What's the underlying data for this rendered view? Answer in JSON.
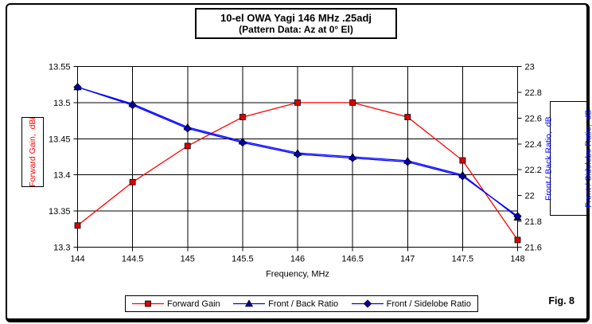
{
  "figure": {
    "fig_label": "Fig. 8"
  },
  "chart_data": {
    "type": "line",
    "title": "10-el OWA Yagi 146 MHz .25adj",
    "subtitle": "(Pattern Data: Az at 0° El)",
    "xlabel": "Frequency, MHz",
    "x_range": [
      144,
      148
    ],
    "x": [
      144,
      144.5,
      145,
      145.5,
      146,
      146.5,
      147,
      147.5,
      148
    ],
    "x_tick_labels": [
      "144",
      "144.5",
      "145",
      "145.5",
      "146",
      "146.5",
      "147",
      "147.5",
      "148"
    ],
    "grid": true,
    "legend_position": "bottom",
    "left_axis": {
      "label": "Forward Gain,  dBi",
      "min": 13.3,
      "max": 13.55,
      "tick_step": 0.05,
      "tick_labels": [
        "13.55",
        "13.5",
        "13.45",
        "13.4",
        "13.35",
        "13.3"
      ],
      "color": "#ff0000"
    },
    "right_axis": {
      "label_line1": "Front / Back Ratio,  dB",
      "label_line2": "Front / Sidelobe Ratio,  dB",
      "min": 21.6,
      "max": 23,
      "tick_step": 0.2,
      "tick_labels": [
        "23",
        "22.8",
        "22.6",
        "22.4",
        "22.2",
        "22",
        "21.8",
        "21.6"
      ],
      "color": "#0000ff"
    },
    "series": [
      {
        "name": "Forward Gain",
        "axis": "left",
        "marker": "square",
        "color": "#ff0000",
        "marker_color": "#dd0000",
        "values": [
          13.33,
          13.39,
          13.44,
          13.48,
          13.5,
          13.5,
          13.48,
          13.42,
          13.31
        ]
      },
      {
        "name": "Front / Back Ratio",
        "axis": "right",
        "marker": "triangle",
        "color": "#0000ff",
        "marker_color": "#0000aa",
        "values": [
          22.84,
          22.71,
          22.53,
          22.42,
          22.33,
          22.3,
          22.27,
          22.16,
          21.83
        ]
      },
      {
        "name": "Front / Sidelobe Ratio",
        "axis": "right",
        "marker": "diamond",
        "color": "#0000ff",
        "marker_color": "#0000aa",
        "values": [
          22.84,
          22.7,
          22.52,
          22.41,
          22.32,
          22.29,
          22.26,
          22.15,
          21.84
        ]
      }
    ]
  }
}
